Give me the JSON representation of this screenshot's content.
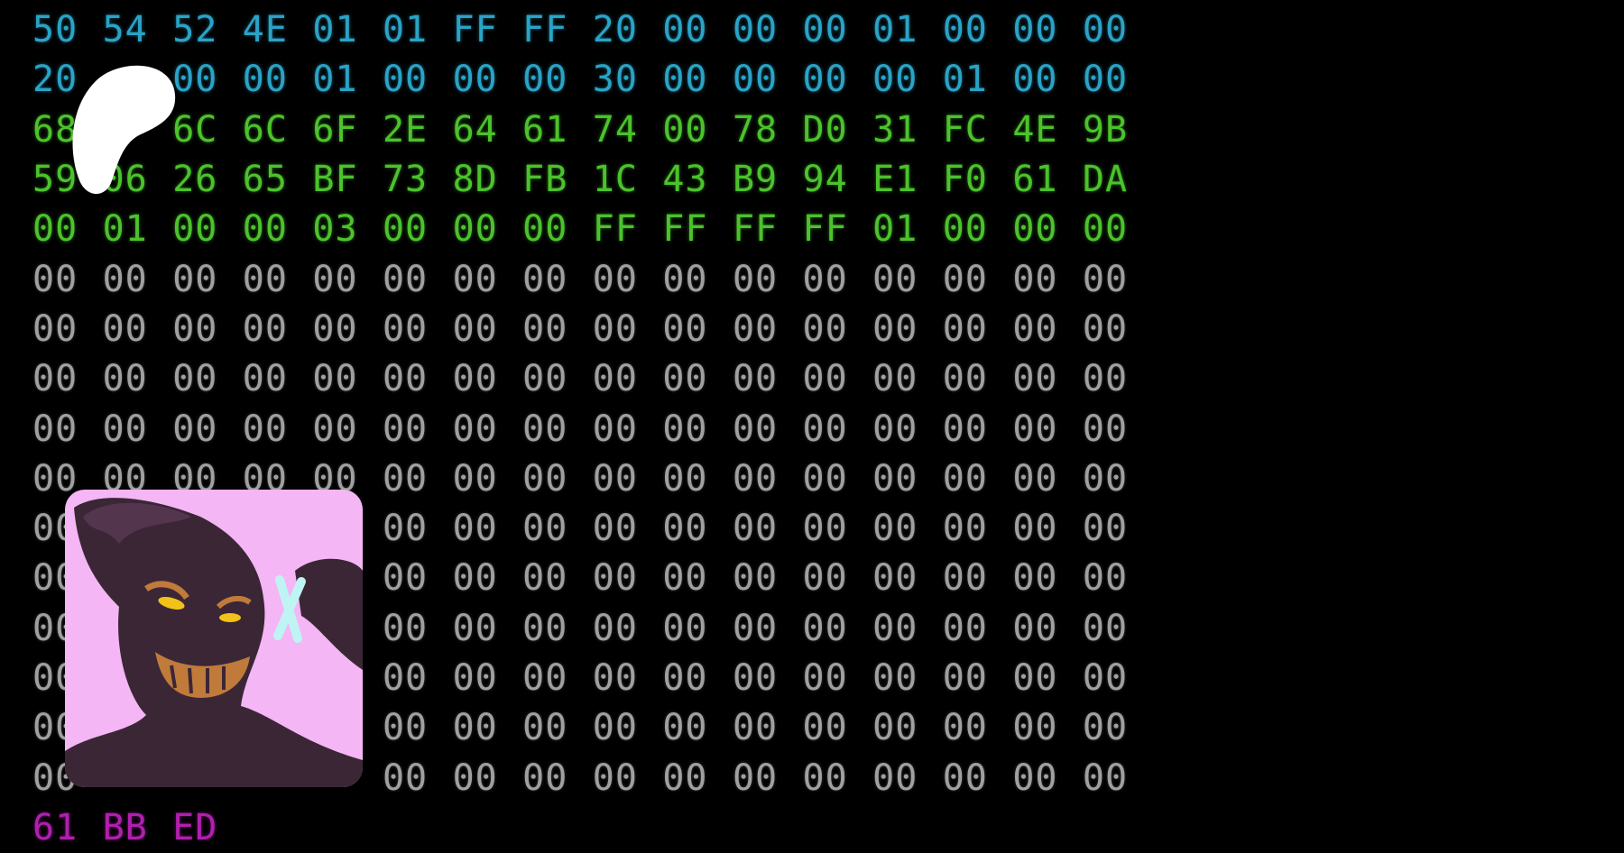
{
  "hex_dump": {
    "rows": [
      {
        "group": "header",
        "bytes": [
          "50",
          "54",
          "52",
          "4E",
          "01",
          "01",
          "FF",
          "FF",
          "20",
          "00",
          "00",
          "00",
          "01",
          "00",
          "00",
          "00"
        ]
      },
      {
        "group": "header",
        "bytes": [
          "20",
          "",
          "00",
          "00",
          "01",
          "00",
          "00",
          "00",
          "30",
          "00",
          "00",
          "00",
          "00",
          "01",
          "00",
          "00"
        ]
      },
      {
        "group": "data",
        "bytes": [
          "68",
          "",
          "6C",
          "6C",
          "6F",
          "2E",
          "64",
          "61",
          "74",
          "00",
          "78",
          "D0",
          "31",
          "FC",
          "4E",
          "9B"
        ]
      },
      {
        "group": "data",
        "bytes": [
          "59",
          "06",
          "26",
          "65",
          "BF",
          "73",
          "8D",
          "FB",
          "1C",
          "43",
          "B9",
          "94",
          "E1",
          "F0",
          "61",
          "DA"
        ]
      },
      {
        "group": "data",
        "bytes": [
          "00",
          "01",
          "00",
          "00",
          "03",
          "00",
          "00",
          "00",
          "FF",
          "FF",
          "FF",
          "FF",
          "01",
          "00",
          "00",
          "00"
        ]
      },
      {
        "group": "zero",
        "bytes": [
          "00",
          "00",
          "00",
          "00",
          "00",
          "00",
          "00",
          "00",
          "00",
          "00",
          "00",
          "00",
          "00",
          "00",
          "00",
          "00"
        ]
      },
      {
        "group": "zero",
        "bytes": [
          "00",
          "00",
          "00",
          "00",
          "00",
          "00",
          "00",
          "00",
          "00",
          "00",
          "00",
          "00",
          "00",
          "00",
          "00",
          "00"
        ]
      },
      {
        "group": "zero",
        "bytes": [
          "00",
          "00",
          "00",
          "00",
          "00",
          "00",
          "00",
          "00",
          "00",
          "00",
          "00",
          "00",
          "00",
          "00",
          "00",
          "00"
        ]
      },
      {
        "group": "zero",
        "bytes": [
          "00",
          "00",
          "00",
          "00",
          "00",
          "00",
          "00",
          "00",
          "00",
          "00",
          "00",
          "00",
          "00",
          "00",
          "00",
          "00"
        ]
      },
      {
        "group": "zero",
        "bytes": [
          "00",
          "00",
          "00",
          "00",
          "00",
          "00",
          "00",
          "00",
          "00",
          "00",
          "00",
          "00",
          "00",
          "00",
          "00",
          "00"
        ]
      },
      {
        "group": "zero",
        "bytes": [
          "00",
          "",
          "",
          "",
          "",
          "00",
          "00",
          "00",
          "00",
          "00",
          "00",
          "00",
          "00",
          "00",
          "00",
          "00"
        ]
      },
      {
        "group": "zero",
        "bytes": [
          "00",
          "",
          "",
          "",
          "",
          "00",
          "00",
          "00",
          "00",
          "00",
          "00",
          "00",
          "00",
          "00",
          "00",
          "00"
        ]
      },
      {
        "group": "zero",
        "bytes": [
          "00",
          "",
          "",
          "",
          "",
          "00",
          "00",
          "00",
          "00",
          "00",
          "00",
          "00",
          "00",
          "00",
          "00",
          "00"
        ]
      },
      {
        "group": "zero",
        "bytes": [
          "00",
          "",
          "",
          "",
          "",
          "00",
          "00",
          "00",
          "00",
          "00",
          "00",
          "00",
          "00",
          "00",
          "00",
          "00"
        ]
      },
      {
        "group": "zero",
        "bytes": [
          "00",
          "",
          "",
          "",
          "",
          "00",
          "00",
          "00",
          "00",
          "00",
          "00",
          "00",
          "00",
          "00",
          "00",
          "00"
        ]
      },
      {
        "group": "zero",
        "bytes": [
          "00",
          "",
          "",
          "",
          "",
          "00",
          "00",
          "00",
          "00",
          "00",
          "00",
          "00",
          "00",
          "00",
          "00",
          "00"
        ]
      },
      {
        "group": "tail",
        "bytes": [
          "61",
          "BB",
          "ED"
        ]
      }
    ],
    "colors": {
      "header": "#2aa3c6",
      "data": "#4cc22c",
      "zero": "#a0a0a0",
      "tail": "#b01fae"
    }
  },
  "overlays": {
    "blob": {
      "icon": "white-blob-redaction",
      "color": "#ffffff"
    },
    "avatar": {
      "icon": "grinning-shadow-character-image",
      "background": "#f4b6f4"
    }
  }
}
